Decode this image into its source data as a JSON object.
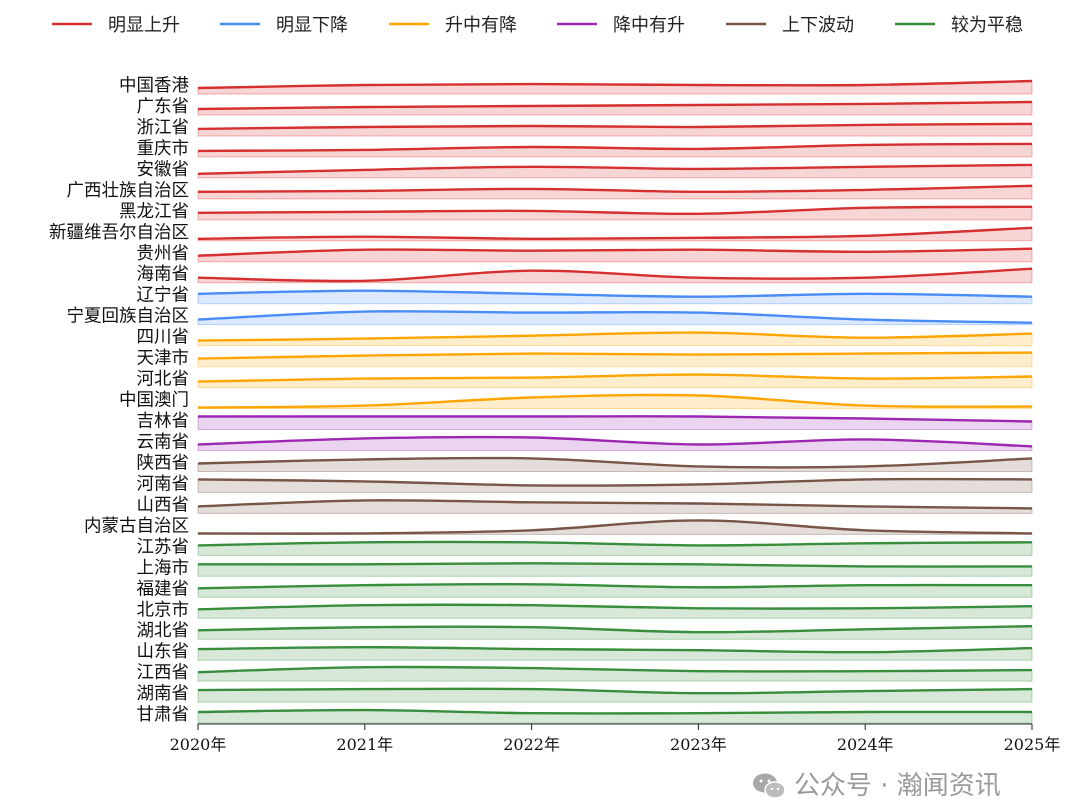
{
  "chart_data": {
    "type": "area",
    "chart_style": "ridgeline",
    "x": [
      "2020年",
      "2021年",
      "2022年",
      "2023年",
      "2024年",
      "2025年"
    ],
    "value_scale": "normalized 0-1 per row (no value axis printed)",
    "legend": {
      "placement": "top",
      "entries": [
        {
          "key": "up",
          "label": "明显上升",
          "color": "#d62f2f"
        },
        {
          "key": "down",
          "label": "明显下降",
          "color": "#4a8cf7"
        },
        {
          "key": "upDown",
          "label": "升中有降",
          "color": "#ffa500"
        },
        {
          "key": "downUp",
          "label": "降中有升",
          "color": "#9c27b0"
        },
        {
          "key": "fluct",
          "label": "上下波动",
          "color": "#795548"
        },
        {
          "key": "flat",
          "label": "较为平稳",
          "color": "#388e3c"
        }
      ]
    },
    "series": [
      {
        "name": "中国香港",
        "group": "up",
        "values": [
          0.43,
          0.64,
          0.71,
          0.64,
          0.64,
          0.93
        ]
      },
      {
        "name": "广东省",
        "group": "up",
        "values": [
          0.43,
          0.57,
          0.64,
          0.71,
          0.79,
          0.93
        ]
      },
      {
        "name": "浙江省",
        "group": "up",
        "values": [
          0.5,
          0.64,
          0.71,
          0.64,
          0.79,
          0.86
        ]
      },
      {
        "name": "重庆市",
        "group": "up",
        "values": [
          0.43,
          0.5,
          0.71,
          0.57,
          0.86,
          0.93
        ]
      },
      {
        "name": "安徽省",
        "group": "up",
        "values": [
          0.29,
          0.57,
          0.79,
          0.64,
          0.79,
          0.93
        ]
      },
      {
        "name": "广西壮族自治区",
        "group": "up",
        "values": [
          0.5,
          0.57,
          0.71,
          0.5,
          0.64,
          0.93
        ]
      },
      {
        "name": "黑龙江省",
        "group": "up",
        "values": [
          0.5,
          0.57,
          0.64,
          0.43,
          0.86,
          0.93
        ]
      },
      {
        "name": "新疆维吾尔自治区",
        "group": "up",
        "values": [
          0.14,
          0.29,
          0.14,
          0.21,
          0.36,
          0.93
        ]
      },
      {
        "name": "贵州省",
        "group": "up",
        "values": [
          0.43,
          0.86,
          0.79,
          0.86,
          0.71,
          0.93
        ]
      },
      {
        "name": "海南省",
        "group": "up",
        "values": [
          0.36,
          0.14,
          0.86,
          0.36,
          0.36,
          1.0
        ]
      },
      {
        "name": "辽宁省",
        "group": "down",
        "values": [
          0.71,
          0.93,
          0.71,
          0.5,
          0.71,
          0.5
        ]
      },
      {
        "name": "宁夏回族自治区",
        "group": "down",
        "values": [
          0.36,
          0.93,
          0.86,
          0.86,
          0.36,
          0.14
        ]
      },
      {
        "name": "四川省",
        "group": "upDown",
        "values": [
          0.36,
          0.5,
          0.71,
          0.93,
          0.57,
          0.86
        ]
      },
      {
        "name": "天津市",
        "group": "upDown",
        "values": [
          0.57,
          0.79,
          0.93,
          0.86,
          0.93,
          1.0
        ]
      },
      {
        "name": "河北省",
        "group": "upDown",
        "values": [
          0.43,
          0.64,
          0.71,
          0.93,
          0.64,
          0.79
        ]
      },
      {
        "name": "中国澳门",
        "group": "upDown",
        "values": [
          0.07,
          0.21,
          0.79,
          0.93,
          0.21,
          0.14
        ]
      },
      {
        "name": "吉林省",
        "group": "downUp",
        "values": [
          0.93,
          0.93,
          0.93,
          0.93,
          0.79,
          0.57
        ]
      },
      {
        "name": "云南省",
        "group": "downUp",
        "values": [
          0.43,
          0.86,
          0.93,
          0.43,
          0.79,
          0.29
        ]
      },
      {
        "name": "陕西省",
        "group": "fluct",
        "values": [
          0.57,
          0.86,
          0.93,
          0.36,
          0.36,
          0.93
        ]
      },
      {
        "name": "河南省",
        "group": "fluct",
        "values": [
          0.93,
          0.79,
          0.5,
          0.57,
          0.93,
          0.93
        ]
      },
      {
        "name": "山西省",
        "group": "fluct",
        "values": [
          0.5,
          0.93,
          0.79,
          0.71,
          0.5,
          0.36
        ]
      },
      {
        "name": "内蒙古自治区",
        "group": "fluct",
        "values": [
          0.07,
          0.07,
          0.29,
          1.0,
          0.29,
          0.07
        ]
      },
      {
        "name": "江苏省",
        "group": "flat",
        "values": [
          0.71,
          0.93,
          0.93,
          0.71,
          0.86,
          0.93
        ]
      },
      {
        "name": "上海市",
        "group": "flat",
        "values": [
          0.86,
          0.86,
          0.93,
          0.86,
          0.71,
          0.71
        ]
      },
      {
        "name": "福建省",
        "group": "flat",
        "values": [
          0.64,
          0.86,
          0.93,
          0.71,
          0.86,
          0.86
        ]
      },
      {
        "name": "北京市",
        "group": "flat",
        "values": [
          0.64,
          0.93,
          0.93,
          0.71,
          0.71,
          0.86
        ]
      },
      {
        "name": "湖北省",
        "group": "flat",
        "values": [
          0.64,
          0.86,
          0.86,
          0.5,
          0.71,
          0.93
        ]
      },
      {
        "name": "山东省",
        "group": "flat",
        "values": [
          0.79,
          0.93,
          0.79,
          0.71,
          0.57,
          0.86
        ]
      },
      {
        "name": "江西省",
        "group": "flat",
        "values": [
          0.64,
          1.0,
          0.93,
          0.71,
          0.71,
          0.79
        ]
      },
      {
        "name": "湖南省",
        "group": "flat",
        "values": [
          0.86,
          0.93,
          0.93,
          0.64,
          0.79,
          0.93
        ]
      },
      {
        "name": "甘肃省",
        "group": "flat",
        "values": [
          0.79,
          0.93,
          0.71,
          0.71,
          0.79,
          0.79
        ]
      }
    ]
  },
  "watermark": {
    "text": "公众号 · 瀚闻资讯",
    "icon": "wechat-icon"
  }
}
